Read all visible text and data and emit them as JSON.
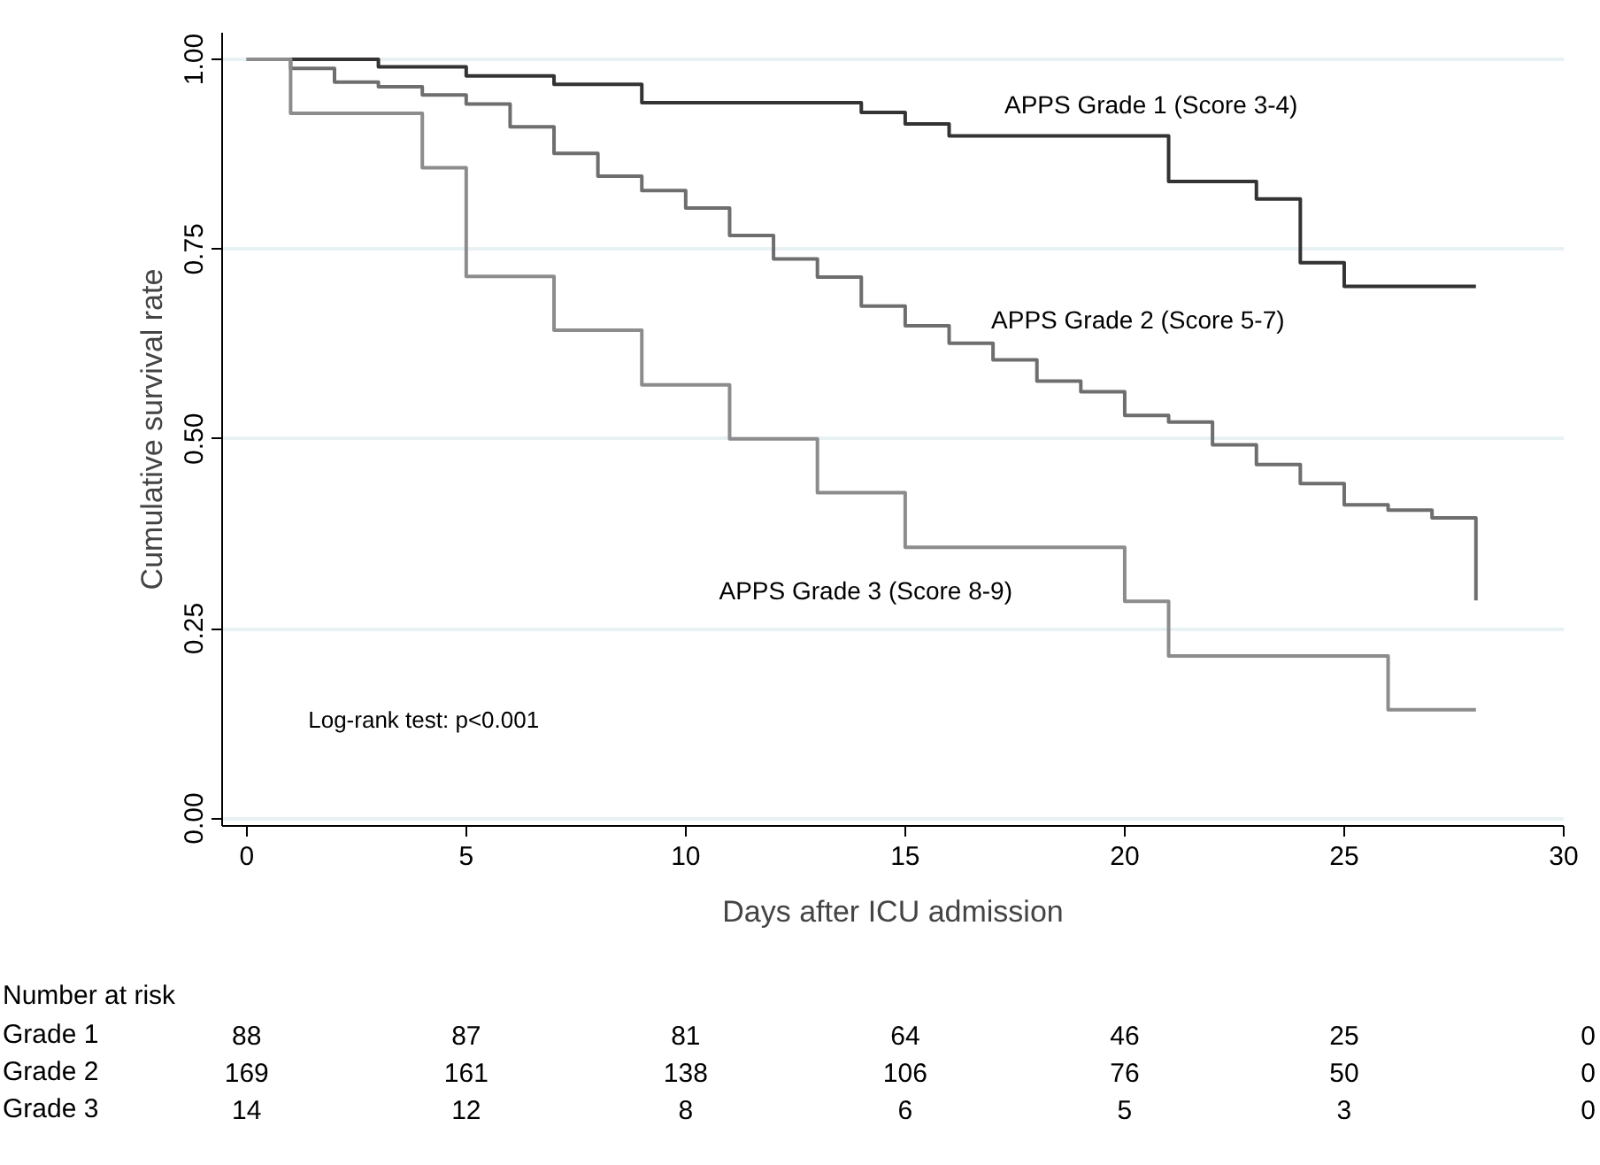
{
  "chart_data": {
    "type": "step",
    "xlabel": "Days after ICU admission",
    "ylabel": "Cumulative survival rate",
    "series": [
      {
        "name": "APPS Grade 1 (Score 3-4)",
        "color": "#333333",
        "x": [
          0,
          3,
          5,
          7,
          9,
          14,
          15,
          16,
          21,
          23,
          24,
          25,
          28
        ],
        "values": [
          1.0,
          0.99,
          0.978,
          0.967,
          0.943,
          0.93,
          0.915,
          0.899,
          0.839,
          0.816,
          0.732,
          0.701,
          0.701
        ]
      },
      {
        "name": "APPS Grade 2 (Score 5-7)",
        "color": "#6e6e6e",
        "x": [
          0,
          1,
          2,
          3,
          4,
          5,
          6,
          7,
          8,
          9,
          10,
          11,
          12,
          13,
          14,
          15,
          16,
          17,
          18,
          19,
          20,
          21,
          22,
          23,
          24,
          25,
          26,
          27,
          28
        ],
        "values": [
          1.0,
          0.988,
          0.97,
          0.964,
          0.953,
          0.941,
          0.911,
          0.876,
          0.846,
          0.827,
          0.804,
          0.768,
          0.737,
          0.713,
          0.675,
          0.649,
          0.626,
          0.604,
          0.576,
          0.562,
          0.531,
          0.522,
          0.492,
          0.466,
          0.441,
          0.413,
          0.406,
          0.396,
          0.287
        ]
      },
      {
        "name": "APPS Grade 3 (Score 8-9)",
        "color": "#8c8c8c",
        "x": [
          0,
          1,
          4,
          5,
          7,
          9,
          11,
          13,
          15,
          20,
          21,
          26,
          28
        ],
        "values": [
          1.0,
          0.929,
          0.857,
          0.714,
          0.643,
          0.571,
          0.5,
          0.429,
          0.357,
          0.286,
          0.214,
          0.143,
          0.143
        ]
      }
    ],
    "xlim": [
      -0.56,
      30
    ],
    "xticks": [
      0,
      5,
      10,
      15,
      20,
      25,
      30
    ],
    "ylim": [
      -0.01,
      1.035
    ],
    "yticks": [
      {
        "value": 0,
        "label": "0.00"
      },
      {
        "value": 0.25,
        "label": "0.25"
      },
      {
        "value": 0.5,
        "label": "0.50"
      },
      {
        "value": 0.75,
        "label": "0.75"
      },
      {
        "value": 1,
        "label": "1.00"
      }
    ],
    "grid": "y",
    "line_style": "solid",
    "annotations": [
      "Log-rank test: p<0.001",
      "Number at risk",
      "Grade 1",
      "88",
      "87",
      "81",
      "64",
      "46",
      "25",
      "0",
      "Grade 2",
      "169",
      "161",
      "138",
      "106",
      "76",
      "50",
      "0",
      "Grade 3",
      "14",
      "12",
      "8",
      "6",
      "5",
      "3",
      "0"
    ]
  }
}
